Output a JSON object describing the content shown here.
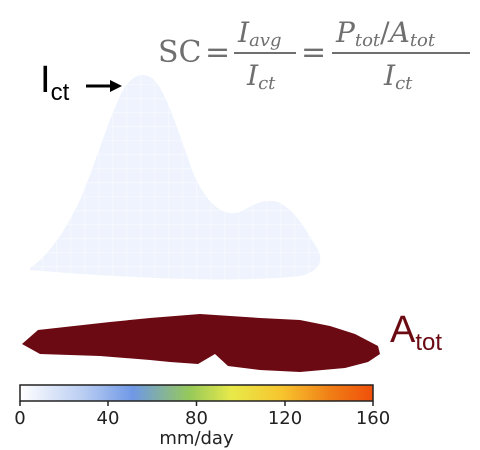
{
  "equation": {
    "lhs": "SC",
    "eq1": "=",
    "eq2": "=",
    "num1_main": "I",
    "num1_sub": "avg",
    "den1_main": "I",
    "den1_sub": "ct",
    "num2_a_main": "P",
    "num2_a_sub": "tot",
    "num2_slash": "/",
    "num2_b_main": "A",
    "num2_b_sub": "tot",
    "den2_main": "I",
    "den2_sub": "ct"
  },
  "peak_label": {
    "main": "I",
    "sub": "ct"
  },
  "area_label": {
    "main": "A",
    "sub": "tot",
    "color": "#6b0a12"
  },
  "footprint": {
    "color": "#6b0a12"
  },
  "colorbar": {
    "title": "mm/day",
    "ticks": [
      "0",
      "40",
      "80",
      "120",
      "160"
    ],
    "colors": [
      "#ffffff",
      "#b9cdf2",
      "#6f98e6",
      "#96c95a",
      "#e8e94a",
      "#f7c52e",
      "#f07e16",
      "#f04f0a"
    ]
  }
}
